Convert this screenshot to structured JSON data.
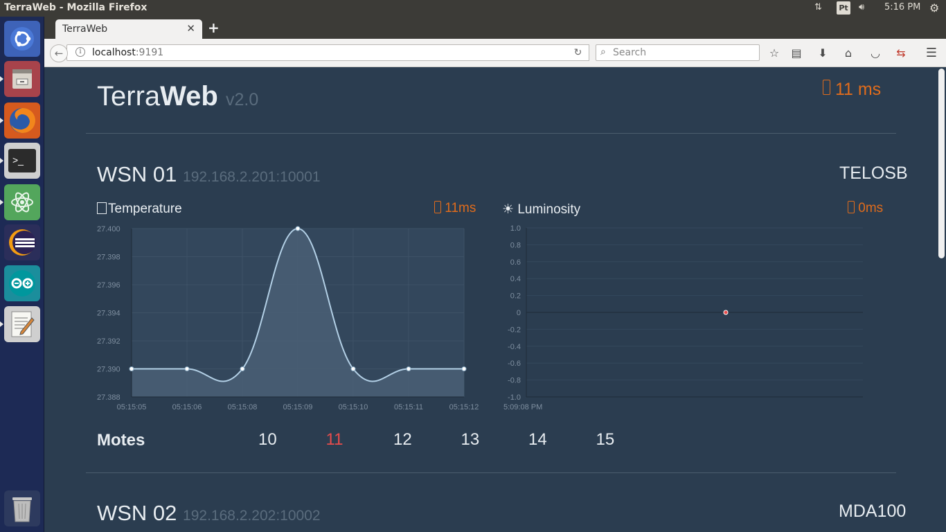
{
  "os": {
    "window_title": "TerraWeb - Mozilla Firefox",
    "clock": "5:16 PM",
    "keyboard": "Pt"
  },
  "browser": {
    "tab_title": "TerraWeb",
    "url_host": "localhost",
    "url_port": ":9191",
    "search_placeholder": "Search"
  },
  "header": {
    "brand_light": "Terra",
    "brand_bold": "Web",
    "version": "v2.0",
    "latency": "11 ms"
  },
  "wsn1": {
    "name": "WSN 01",
    "address": "192.168.2.201:10001",
    "board": "TELOSB"
  },
  "wsn2": {
    "name": "WSN 02",
    "address": "192.168.2.202:10002",
    "board": "MDA100"
  },
  "charts": {
    "temperature": {
      "title": "Temperature",
      "latency": "11ms"
    },
    "luminosity": {
      "title": "Luminosity",
      "latency": "0ms"
    }
  },
  "motes": {
    "label": "Motes",
    "items": [
      "10",
      "11",
      "12",
      "13",
      "14",
      "15"
    ],
    "active": "11"
  },
  "colors": {
    "background": "#2b3d50",
    "accent": "#e06c1c",
    "active_mote": "#e84c4c",
    "line": "#b3d0e6"
  },
  "chart_data": [
    {
      "type": "area",
      "title": "Temperature",
      "x": [
        "05:15:05",
        "05:15:06",
        "05:15:08",
        "05:15:09",
        "05:15:10",
        "05:15:11",
        "05:15:12"
      ],
      "y": [
        27.39,
        27.39,
        27.39,
        27.4,
        27.39,
        27.39,
        27.39
      ],
      "yticks": [
        "27.400",
        "27.398",
        "27.396",
        "27.394",
        "27.392",
        "27.390",
        "27.388"
      ],
      "ylim": [
        27.388,
        27.4
      ],
      "grid": true
    },
    {
      "type": "scatter",
      "title": "Luminosity",
      "x": [
        "5:09:08 PM"
      ],
      "y": [
        0
      ],
      "yticks": [
        "1.0",
        "0.8",
        "0.6",
        "0.4",
        "0.2",
        "0",
        "-0.2",
        "-0.4",
        "-0.6",
        "-0.8",
        "-1.0"
      ],
      "ylim": [
        -1.0,
        1.0
      ],
      "grid": true
    }
  ]
}
